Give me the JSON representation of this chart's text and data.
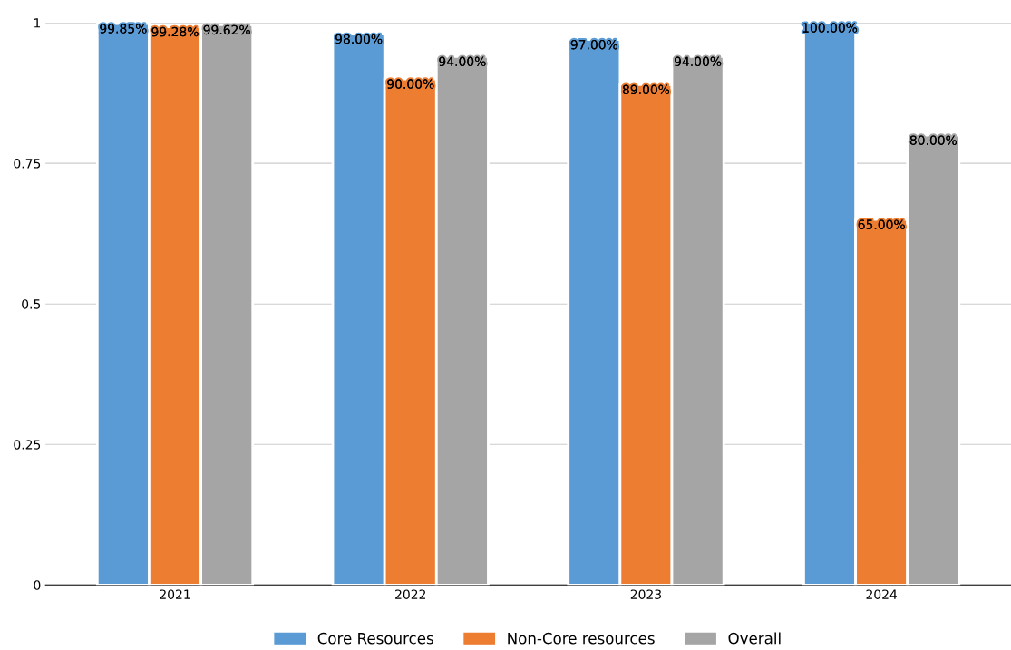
{
  "chart_data": {
    "type": "bar",
    "categories": [
      "2021",
      "2022",
      "2023",
      "2024"
    ],
    "series": [
      {
        "name": "Core Resources",
        "color": "#5b9bd5",
        "values": [
          0.9985,
          0.98,
          0.97,
          1.0
        ],
        "value_labels": [
          "99.85%",
          "98.00%",
          "97.00%",
          "100.00%"
        ]
      },
      {
        "name": "Non-Core resources",
        "color": "#ed7d31",
        "values": [
          0.9928,
          0.9,
          0.89,
          0.65
        ],
        "value_labels": [
          "99.28%",
          "90.00%",
          "89.00%",
          "65.00%"
        ]
      },
      {
        "name": "Overall",
        "color": "#a5a5a5",
        "values": [
          0.9962,
          0.94,
          0.94,
          0.8
        ],
        "value_labels": [
          "99.62%",
          "94.00%",
          "94.00%",
          "80.00%"
        ]
      }
    ],
    "ylim": [
      0,
      1
    ],
    "yticks": [
      0,
      0.25,
      0.5,
      0.75,
      1
    ],
    "grid": "y",
    "legend": "bottom"
  }
}
